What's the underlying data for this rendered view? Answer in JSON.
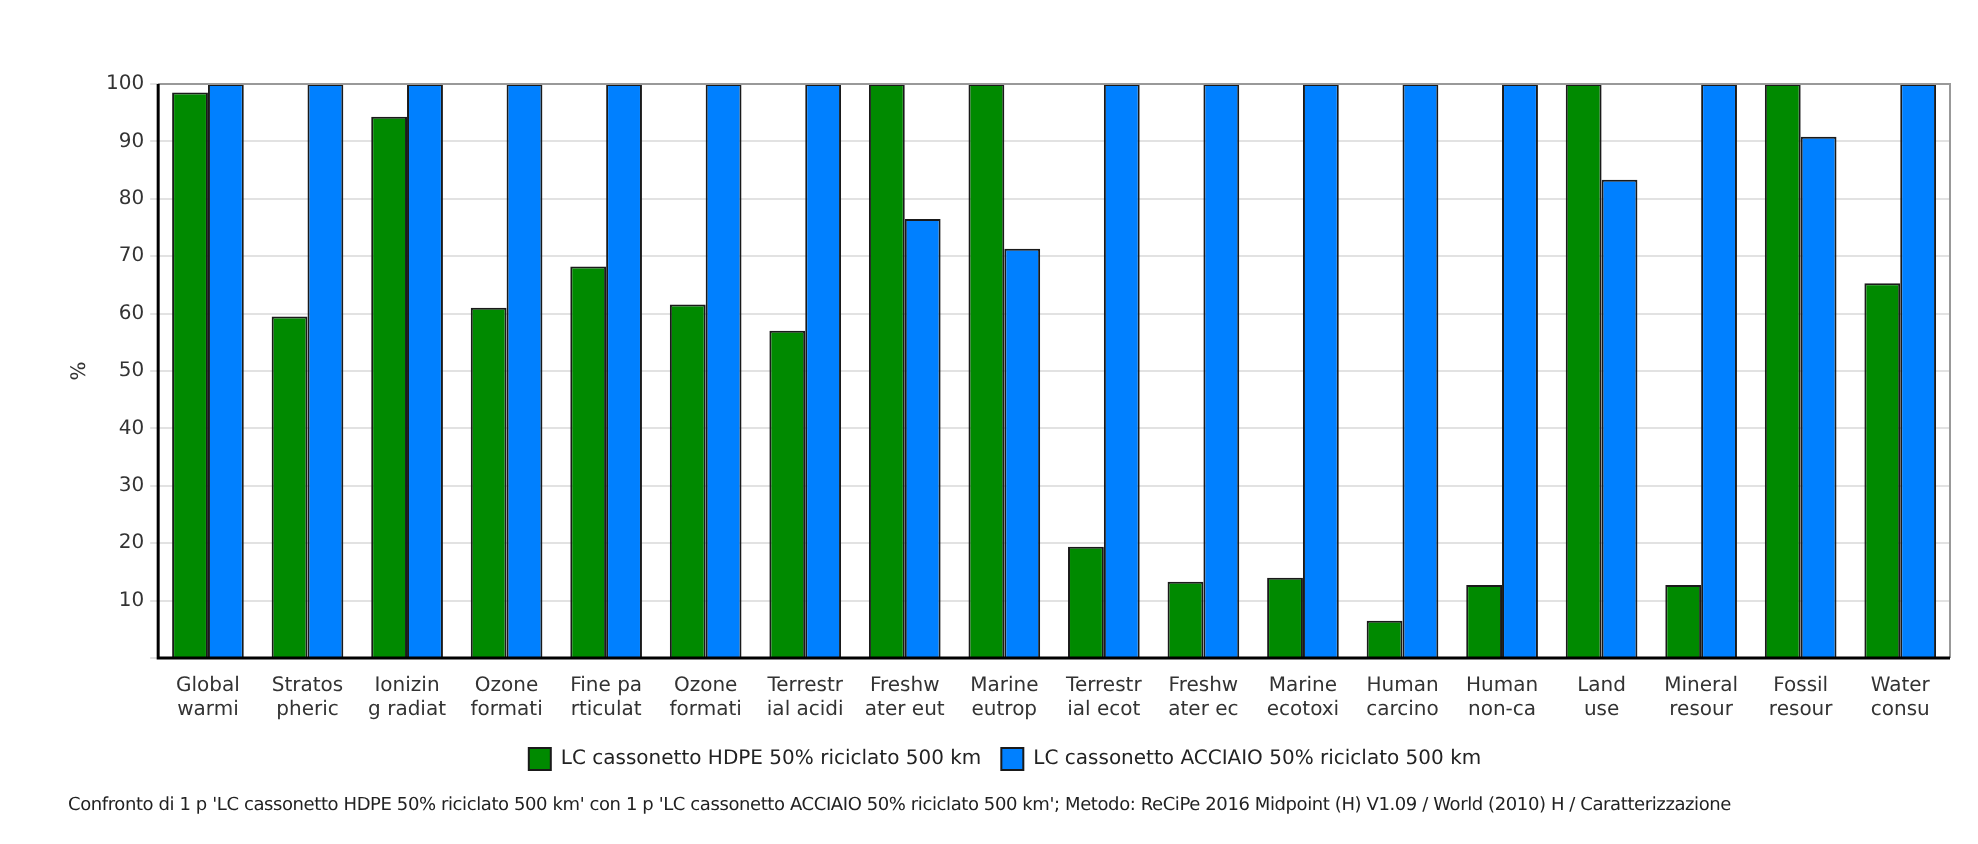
{
  "chart_data": {
    "type": "bar",
    "categories": [
      "Global\nwarmi",
      "Stratos\npheric",
      "Ionizin\ng radiat",
      "Ozone\nformati",
      "Fine pa\nrticulat",
      "Ozone\nformati",
      "Terrestr\nial acidi",
      "Freshw\nater eut",
      "Marine\neutrop",
      "Terrestr\nial ecot",
      "Freshw\nater ec",
      "Marine\necotoxi",
      "Human\ncarcino",
      "Human\nnon-ca",
      "Land\nuse",
      "Mineral\nresour",
      "Fossil\nresour",
      "Water\nconsu"
    ],
    "series": [
      {
        "name": "LC cassonetto HDPE 50% riciclato 500 km",
        "color": "#008a00",
        "values": [
          98.5,
          59.5,
          94.3,
          61,
          68.2,
          61.6,
          57,
          100,
          100,
          19.4,
          13.3,
          14,
          6.5,
          12.7,
          100,
          12.7,
          100,
          65.3
        ]
      },
      {
        "name": "LC cassonetto ACCIAIO 50% riciclato 500 km",
        "color": "#0080ff",
        "values": [
          100,
          100,
          100,
          100,
          100,
          100,
          100,
          76.5,
          71.3,
          100,
          100,
          100,
          100,
          100,
          83.3,
          100,
          90.8,
          100
        ]
      }
    ],
    "ylabel": "%",
    "ylim": [
      0,
      100
    ],
    "yticks": [
      {
        "value": 0,
        "label": null
      },
      10,
      20,
      30,
      40,
      50,
      60,
      70,
      80,
      90,
      100
    ],
    "grid": "y",
    "legend": "bottom",
    "annotations": [
      "Confronto di 1 p 'LC cassonetto HDPE 50% riciclato 500 km' con 1 p 'LC cassonetto ACCIAIO 50% riciclato 500 km';  Metodo: ReCiPe 2016 Midpoint (H) V1.09 / World (2010) H / Caratterizzazione"
    ]
  }
}
